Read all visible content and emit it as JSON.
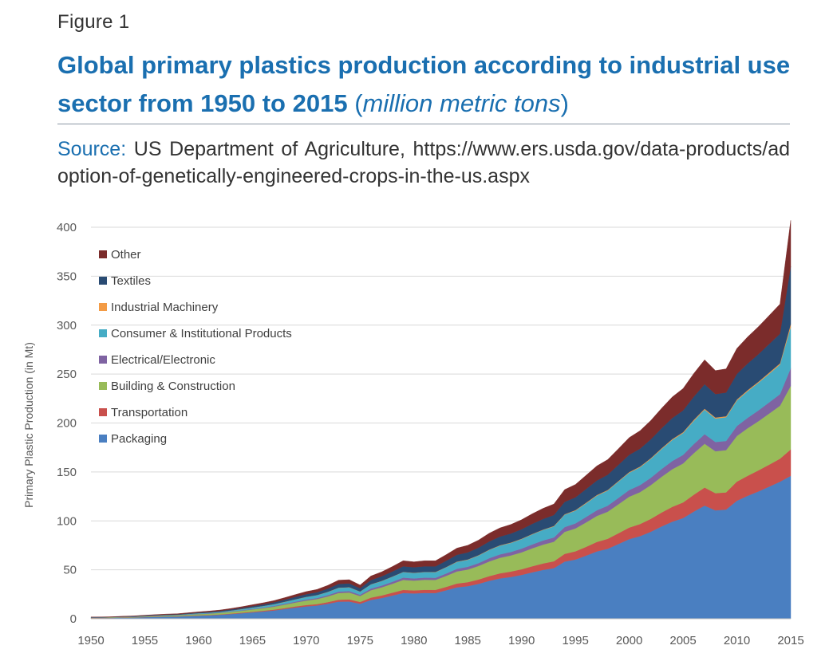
{
  "figure": {
    "label": "Figure 1",
    "title_main": "Global primary plastics production according to industrial use sector from 1950 to 2015",
    "title_units": "million metric tons",
    "source_label": "Source:",
    "source_text": "US Department of Agriculture, https://www.ers.usda.gov/data-products/adoption-of-genetically-engineered-crops-in-the-us.aspx"
  },
  "colors": {
    "Packaging": "#4a7fc1",
    "Transportation": "#c9504c",
    "Building & Construction": "#98bb59",
    "Electrical/Electronic": "#7f63a2",
    "Consumer & Institutional Products": "#46acc5",
    "Industrial Machinery": "#f39b45",
    "Textiles": "#294b73",
    "Other": "#7b2c2b"
  },
  "chart_data": {
    "type": "area",
    "stacked": true,
    "title": "",
    "xlabel": "",
    "ylabel": "Primary Plastic Production (in Mt)",
    "xlim": [
      1950,
      2015
    ],
    "ylim": [
      0,
      400
    ],
    "x_ticks": [
      1950,
      1955,
      1960,
      1965,
      1970,
      1975,
      1980,
      1985,
      1990,
      1995,
      2000,
      2005,
      2010,
      2015
    ],
    "y_ticks": [
      0,
      50,
      100,
      150,
      200,
      250,
      300,
      350,
      400
    ],
    "grid": "horizontal",
    "legend_position": "top-left",
    "legend_order": [
      "Other",
      "Textiles",
      "Industrial Machinery",
      "Consumer & Institutional Products",
      "Electrical/Electronic",
      "Building & Construction",
      "Transportation",
      "Packaging"
    ],
    "x": [
      1950,
      1951,
      1952,
      1953,
      1954,
      1955,
      1956,
      1957,
      1958,
      1959,
      1960,
      1961,
      1962,
      1963,
      1964,
      1965,
      1966,
      1967,
      1968,
      1969,
      1970,
      1971,
      1972,
      1973,
      1974,
      1975,
      1976,
      1977,
      1978,
      1979,
      1980,
      1981,
      1982,
      1983,
      1984,
      1985,
      1986,
      1987,
      1988,
      1989,
      1990,
      1991,
      1992,
      1993,
      1994,
      1995,
      1996,
      1997,
      1998,
      1999,
      2000,
      2001,
      2002,
      2003,
      2004,
      2005,
      2006,
      2007,
      2008,
      2009,
      2010,
      2011,
      2012,
      2013,
      2014,
      2015
    ],
    "series": [
      {
        "name": "Packaging",
        "values": [
          0.7,
          0.8,
          0.9,
          1.1,
          1.3,
          1.6,
          1.9,
          2.1,
          2.3,
          2.8,
          3.2,
          3.5,
          4.1,
          4.8,
          5.6,
          6.5,
          7.4,
          8.5,
          9.9,
          11.4,
          12.6,
          13.5,
          15.3,
          17.5,
          17.6,
          15.3,
          19.2,
          21.2,
          23.7,
          26.3,
          25.9,
          26.4,
          26.3,
          29.1,
          32.1,
          33.3,
          35.7,
          38.8,
          41.2,
          42.7,
          44.8,
          47.5,
          49.9,
          51.7,
          58.4,
          60.5,
          64.5,
          68.8,
          71.5,
          76.4,
          81.4,
          84.4,
          88.9,
          94.3,
          99.2,
          102.9,
          109.6,
          115.6,
          110.8,
          111.6,
          120.6,
          125.6,
          130.1,
          135.0,
          140.0,
          146.0
        ]
      },
      {
        "name": "Transportation",
        "values": [
          0.1,
          0.1,
          0.1,
          0.1,
          0.1,
          0.2,
          0.2,
          0.2,
          0.2,
          0.3,
          0.3,
          0.4,
          0.4,
          0.5,
          0.6,
          0.7,
          0.8,
          0.9,
          1.0,
          1.2,
          1.4,
          1.5,
          1.7,
          2.0,
          2.2,
          1.9,
          2.4,
          2.6,
          2.9,
          3.2,
          3.1,
          3.2,
          3.2,
          3.5,
          3.9,
          4.1,
          4.4,
          4.8,
          5.2,
          5.5,
          5.8,
          6.2,
          6.6,
          7.0,
          7.9,
          8.4,
          9.0,
          9.7,
          10.2,
          11.0,
          11.8,
          12.4,
          13.2,
          14.2,
          15.2,
          16.0,
          17.2,
          18.5,
          17.5,
          17.5,
          19.5,
          20.5,
          21.5,
          22.5,
          23.5,
          27.0
        ]
      },
      {
        "name": "Building & Construction",
        "values": [
          0.3,
          0.3,
          0.4,
          0.4,
          0.5,
          0.6,
          0.7,
          0.8,
          0.9,
          1.0,
          1.2,
          1.3,
          1.5,
          1.8,
          2.0,
          2.3,
          2.6,
          3.0,
          3.5,
          4.0,
          4.6,
          5.1,
          5.8,
          6.8,
          7.0,
          6.0,
          7.6,
          8.3,
          9.2,
          10.2,
          10.0,
          10.2,
          10.2,
          11.2,
          12.4,
          12.9,
          13.8,
          15.0,
          15.9,
          16.5,
          17.3,
          18.3,
          19.3,
          20.0,
          22.5,
          23.4,
          25.0,
          26.6,
          27.7,
          29.6,
          31.5,
          32.6,
          34.4,
          36.5,
          38.4,
          39.8,
          42.4,
          44.7,
          42.9,
          43.2,
          46.6,
          48.6,
          50.3,
          52.2,
          54.1,
          65.0
        ]
      },
      {
        "name": "Electrical/Electronic",
        "values": [
          0.1,
          0.1,
          0.1,
          0.1,
          0.1,
          0.1,
          0.2,
          0.2,
          0.2,
          0.2,
          0.3,
          0.3,
          0.3,
          0.4,
          0.4,
          0.5,
          0.6,
          0.7,
          0.8,
          0.9,
          1.0,
          1.1,
          1.3,
          1.5,
          1.5,
          1.3,
          1.7,
          1.8,
          2.0,
          2.3,
          2.2,
          2.2,
          2.2,
          2.5,
          2.7,
          2.8,
          3.0,
          3.3,
          3.5,
          3.6,
          3.8,
          4.0,
          4.2,
          4.4,
          4.9,
          5.1,
          5.5,
          5.8,
          6.1,
          6.5,
          6.9,
          7.1,
          7.5,
          8.0,
          8.4,
          8.7,
          9.3,
          9.8,
          9.4,
          9.4,
          10.2,
          10.6,
          11.0,
          11.4,
          11.8,
          18.0
        ]
      },
      {
        "name": "Consumer & Institutional Products",
        "values": [
          0.2,
          0.2,
          0.2,
          0.3,
          0.3,
          0.4,
          0.4,
          0.5,
          0.5,
          0.6,
          0.7,
          0.8,
          0.9,
          1.0,
          1.2,
          1.4,
          1.6,
          1.8,
          2.1,
          2.4,
          2.7,
          2.9,
          3.3,
          3.8,
          3.8,
          3.3,
          4.2,
          4.6,
          5.2,
          5.7,
          5.6,
          5.7,
          5.7,
          6.3,
          7.0,
          7.2,
          7.7,
          8.4,
          8.9,
          9.2,
          9.7,
          10.3,
          10.8,
          11.2,
          12.6,
          13.1,
          14.0,
          14.9,
          15.5,
          16.6,
          17.6,
          18.3,
          19.3,
          20.4,
          21.5,
          22.3,
          23.8,
          25.0,
          24.0,
          24.2,
          26.1,
          27.2,
          28.2,
          29.2,
          30.3,
          42.0
        ]
      },
      {
        "name": "Industrial Machinery",
        "values": [
          0.0,
          0.0,
          0.0,
          0.0,
          0.0,
          0.0,
          0.0,
          0.0,
          0.0,
          0.0,
          0.0,
          0.0,
          0.0,
          0.0,
          0.1,
          0.1,
          0.1,
          0.1,
          0.1,
          0.1,
          0.1,
          0.1,
          0.1,
          0.2,
          0.2,
          0.1,
          0.2,
          0.2,
          0.2,
          0.2,
          0.2,
          0.2,
          0.2,
          0.3,
          0.3,
          0.3,
          0.3,
          0.3,
          0.4,
          0.4,
          0.4,
          0.4,
          0.4,
          0.5,
          0.5,
          0.5,
          0.6,
          0.6,
          0.6,
          0.7,
          0.7,
          0.7,
          0.8,
          0.8,
          0.9,
          0.9,
          1.0,
          1.0,
          1.0,
          1.0,
          1.0,
          1.1,
          1.1,
          1.2,
          1.2,
          3.0
        ]
      },
      {
        "name": "Textiles",
        "values": [
          0.2,
          0.2,
          0.2,
          0.3,
          0.3,
          0.4,
          0.4,
          0.5,
          0.5,
          0.6,
          0.7,
          0.8,
          0.9,
          1.0,
          1.2,
          1.4,
          1.6,
          1.8,
          2.1,
          2.4,
          2.7,
          2.9,
          3.3,
          3.8,
          3.8,
          3.3,
          4.2,
          4.6,
          5.1,
          5.7,
          5.6,
          5.7,
          5.7,
          6.3,
          6.9,
          7.2,
          7.7,
          8.4,
          8.9,
          9.2,
          9.7,
          10.3,
          10.8,
          11.2,
          12.6,
          13.1,
          14.0,
          14.9,
          15.5,
          16.5,
          17.6,
          18.3,
          19.2,
          20.4,
          21.5,
          22.3,
          23.7,
          25.0,
          24.0,
          24.2,
          26.1,
          27.2,
          28.1,
          29.2,
          30.3,
          59.0
        ]
      },
      {
        "name": "Other",
        "values": [
          0.2,
          0.2,
          0.2,
          0.3,
          0.3,
          0.4,
          0.4,
          0.5,
          0.5,
          0.6,
          0.7,
          0.8,
          0.9,
          1.0,
          1.2,
          1.4,
          1.6,
          1.8,
          2.1,
          2.4,
          2.7,
          2.9,
          3.3,
          3.8,
          3.8,
          3.3,
          4.2,
          4.6,
          5.1,
          5.7,
          5.6,
          5.7,
          5.7,
          6.3,
          6.9,
          7.2,
          7.7,
          8.4,
          8.9,
          9.2,
          9.7,
          10.3,
          10.8,
          11.2,
          12.6,
          13.1,
          14.0,
          14.9,
          15.5,
          16.5,
          17.6,
          18.3,
          19.2,
          20.4,
          21.5,
          22.3,
          23.7,
          25.0,
          24.0,
          24.2,
          26.1,
          27.2,
          28.1,
          29.2,
          30.3,
          47.0
        ]
      }
    ]
  }
}
